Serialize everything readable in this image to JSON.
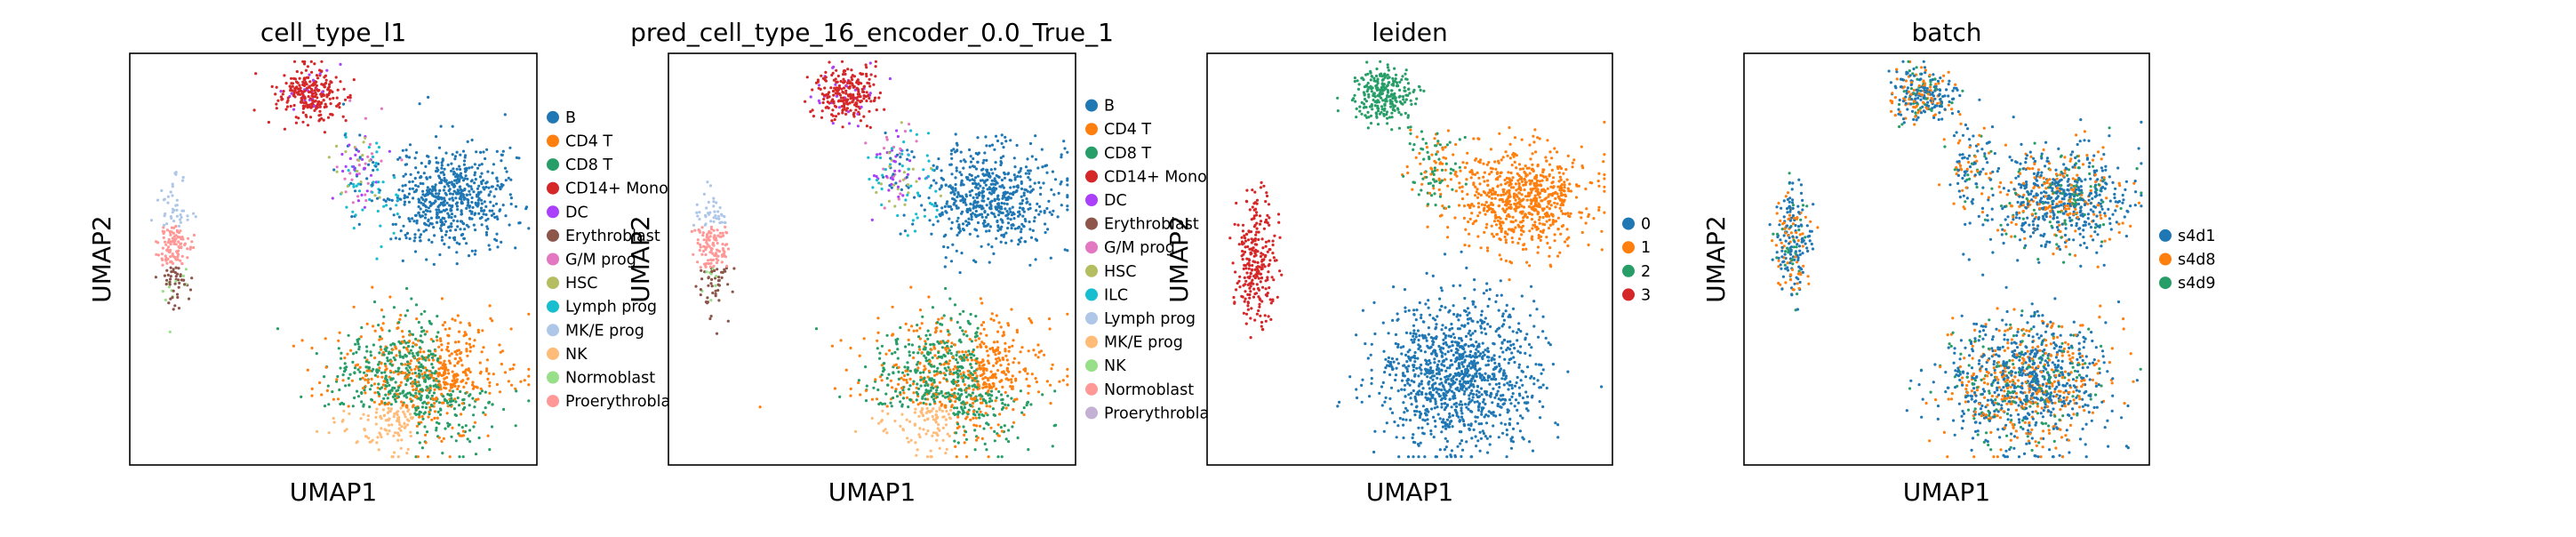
{
  "figure": {
    "panels": [
      {
        "title": "cell_type_l1",
        "xlabel": "UMAP1",
        "ylabel": "UMAP2",
        "legend": [
          "B",
          "CD4 T",
          "CD8 T",
          "CD14+ Mono",
          "DC",
          "Erythroblast",
          "G/M prog",
          "HSC",
          "Lymph prog",
          "MK/E prog",
          "NK",
          "Normoblast",
          "Proerythroblast"
        ]
      },
      {
        "title": "pred_cell_type_16_encoder_0.0_True_1",
        "xlabel": "UMAP1",
        "ylabel": "UMAP2",
        "legend": [
          "B",
          "CD4 T",
          "CD8 T",
          "CD14+ Mono",
          "DC",
          "Erythroblast",
          "G/M prog",
          "HSC",
          "ILC",
          "Lymph prog",
          "MK/E prog",
          "NK",
          "Normoblast",
          "Proerythroblast"
        ]
      },
      {
        "title": "leiden",
        "xlabel": "UMAP1",
        "ylabel": "UMAP2",
        "legend": [
          "0",
          "1",
          "2",
          "3"
        ]
      },
      {
        "title": "batch",
        "xlabel": "UMAP1",
        "ylabel": "UMAP2",
        "legend": [
          "s4d1",
          "s4d8",
          "s4d9"
        ]
      }
    ]
  },
  "chart_data": [
    {
      "type": "scatter",
      "title": "cell_type_l1",
      "xlabel": "UMAP1",
      "ylabel": "UMAP2",
      "ticks": "none",
      "grid": false,
      "legend_placement": "right",
      "categories": [
        "B",
        "CD4 T",
        "CD8 T",
        "CD14+ Mono",
        "DC",
        "Erythroblast",
        "G/M prog",
        "HSC",
        "Lymph prog",
        "MK/E prog",
        "NK",
        "Normoblast",
        "Proerythroblast"
      ],
      "colors": [
        "#1f77b4",
        "#ff7f0e",
        "#279e68",
        "#d62728",
        "#aa40fc",
        "#8c564b",
        "#e377c2",
        "#b5bd61",
        "#17becf",
        "#aec7e8",
        "#ffbb78",
        "#98df8a",
        "#ff9896"
      ]
    },
    {
      "type": "scatter",
      "title": "pred_cell_type_16_encoder_0.0_True_1",
      "xlabel": "UMAP1",
      "ylabel": "UMAP2",
      "ticks": "none",
      "grid": false,
      "legend_placement": "right",
      "categories": [
        "B",
        "CD4 T",
        "CD8 T",
        "CD14+ Mono",
        "DC",
        "Erythroblast",
        "G/M prog",
        "HSC",
        "ILC",
        "Lymph prog",
        "MK/E prog",
        "NK",
        "Normoblast",
        "Proerythroblast"
      ],
      "colors": [
        "#1f77b4",
        "#ff7f0e",
        "#279e68",
        "#d62728",
        "#aa40fc",
        "#8c564b",
        "#e377c2",
        "#b5bd61",
        "#17becf",
        "#aec7e8",
        "#ffbb78",
        "#98df8a",
        "#ff9896",
        "#c5b0d5"
      ]
    },
    {
      "type": "scatter",
      "title": "leiden",
      "xlabel": "UMAP1",
      "ylabel": "UMAP2",
      "ticks": "none",
      "grid": false,
      "legend_placement": "right",
      "categories": [
        "0",
        "1",
        "2",
        "3"
      ],
      "colors": [
        "#1f77b4",
        "#ff7f0e",
        "#279e68",
        "#d62728"
      ]
    },
    {
      "type": "scatter",
      "title": "batch",
      "xlabel": "UMAP1",
      "ylabel": "UMAP2",
      "ticks": "none",
      "grid": false,
      "legend_placement": "right",
      "categories": [
        "s4d1",
        "s4d8",
        "s4d9"
      ],
      "colors": [
        "#1f77b4",
        "#ff7f0e",
        "#279e68"
      ]
    }
  ]
}
